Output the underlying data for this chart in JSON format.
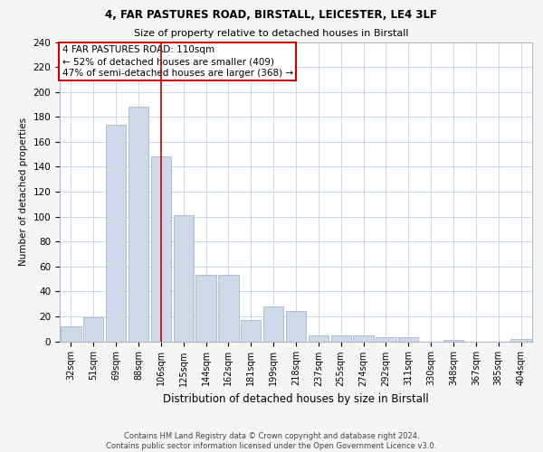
{
  "title_line1": "4, FAR PASTURES ROAD, BIRSTALL, LEICESTER, LE4 3LF",
  "title_line2": "Size of property relative to detached houses in Birstall",
  "xlabel": "Distribution of detached houses by size in Birstall",
  "ylabel": "Number of detached properties",
  "categories": [
    "32sqm",
    "51sqm",
    "69sqm",
    "88sqm",
    "106sqm",
    "125sqm",
    "144sqm",
    "162sqm",
    "181sqm",
    "199sqm",
    "218sqm",
    "237sqm",
    "255sqm",
    "274sqm",
    "292sqm",
    "311sqm",
    "330sqm",
    "348sqm",
    "367sqm",
    "385sqm",
    "404sqm"
  ],
  "values": [
    12,
    19,
    174,
    188,
    148,
    101,
    53,
    53,
    17,
    28,
    24,
    5,
    5,
    5,
    3,
    3,
    0,
    1,
    0,
    0,
    2
  ],
  "bar_color": "#ccd9e8",
  "bar_edge_color": "#9ab0c8",
  "property_bin_index": 4,
  "annotation_line1": "4 FAR PASTURES ROAD: 110sqm",
  "annotation_line2": "← 52% of detached houses are smaller (409)",
  "annotation_line3": "47% of semi-detached houses are larger (368) →",
  "vline_color": "#cc0000",
  "box_edge_color": "#cc0000",
  "annotation_fontsize": 7.5,
  "footer_text": "Contains HM Land Registry data © Crown copyright and database right 2024.\nContains public sector information licensed under the Open Government Licence v3.0.",
  "bg_color": "#f5f5f5",
  "plot_bg_color": "#ffffff",
  "grid_color": "#c8d8e8",
  "ylim": [
    0,
    240
  ],
  "yticks": [
    0,
    20,
    40,
    60,
    80,
    100,
    120,
    140,
    160,
    180,
    200,
    220,
    240
  ]
}
